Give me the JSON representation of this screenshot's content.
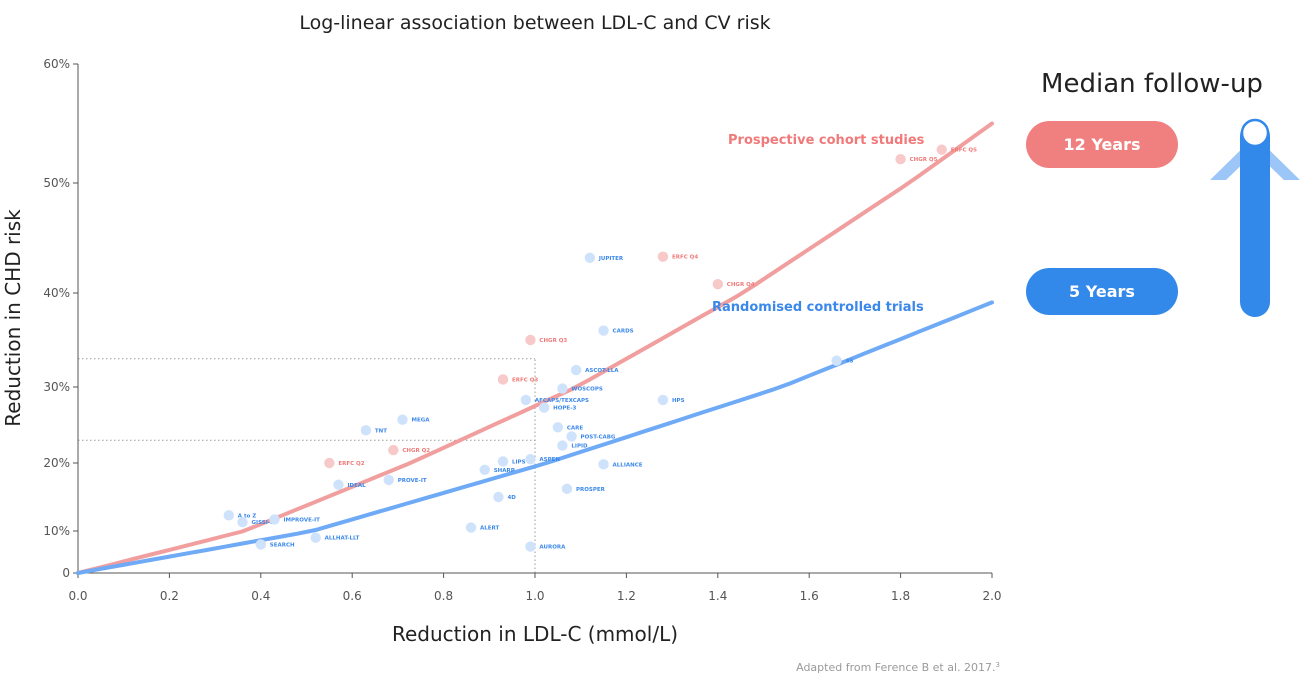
{
  "chart_data": {
    "type": "scatter",
    "title": "Log-linear association between LDL-C and CV risk",
    "xlabel": "Reduction in LDL-C (mmol/L)",
    "ylabel": "Reduction in CHD risk",
    "xlim": [
      0,
      2.0
    ],
    "x_ticks": [
      "0.0",
      "0.2",
      "0.4",
      "0.6",
      "0.8",
      "1.0",
      "1.2",
      "1.4",
      "1.6",
      "1.8",
      "2.0"
    ],
    "y_ticks": [
      {
        "value": 0,
        "label": "0"
      },
      {
        "value": 10,
        "label": "10%"
      },
      {
        "value": 20,
        "label": "20%"
      },
      {
        "value": 30,
        "label": "30%"
      },
      {
        "value": 40,
        "label": "40%"
      },
      {
        "value": 50,
        "label": "50%"
      },
      {
        "value": 60,
        "label": "60%"
      }
    ],
    "reference_lines": [
      {
        "axis": "x",
        "value": 1.0
      },
      {
        "axis": "y",
        "value": 33
      },
      {
        "axis": "y",
        "value": 23
      }
    ],
    "fit_lines": [
      {
        "name": "Prospective cohort studies",
        "color": "#f19e9e",
        "label_color": "#f07a7a",
        "points": [
          [
            0,
            0
          ],
          [
            2.0,
            55
          ]
        ]
      },
      {
        "name": "Randomised controlled trials",
        "color": "#6eaaf5",
        "label_color": "#3b88ea",
        "points": [
          [
            0,
            0
          ],
          [
            2.0,
            39
          ]
        ]
      }
    ],
    "series": [
      {
        "group": "cohort",
        "color": "#f7c9c9",
        "label_color": "#f07a7a",
        "points": [
          {
            "label": "ERFC Q5",
            "x": 1.89,
            "y": 52.8
          },
          {
            "label": "CHGR Q5",
            "x": 1.8,
            "y": 52.0
          },
          {
            "label": "ERFC Q4",
            "x": 1.28,
            "y": 43.3
          },
          {
            "label": "CHGR Q4",
            "x": 1.4,
            "y": 40.8
          },
          {
            "label": "CHGR Q3",
            "x": 0.99,
            "y": 35.0
          },
          {
            "label": "ERFC Q3",
            "x": 0.93,
            "y": 30.8
          },
          {
            "label": "CHGR Q2",
            "x": 0.69,
            "y": 21.7
          },
          {
            "label": "ERFC Q2",
            "x": 0.55,
            "y": 20.0
          }
        ]
      },
      {
        "group": "rct",
        "color": "#cfe2fb",
        "label_color": "#3b88ea",
        "points": [
          {
            "label": "JUPITER",
            "x": 1.12,
            "y": 43.2
          },
          {
            "label": "CARDS",
            "x": 1.15,
            "y": 36.0
          },
          {
            "label": "4S",
            "x": 1.66,
            "y": 32.8
          },
          {
            "label": "ASCOT-LLA",
            "x": 1.09,
            "y": 31.8
          },
          {
            "label": "WOSCOPS",
            "x": 1.06,
            "y": 29.8
          },
          {
            "label": "AFCAPS/TEXCAPS",
            "x": 0.98,
            "y": 28.3
          },
          {
            "label": "HPS",
            "x": 1.28,
            "y": 28.3
          },
          {
            "label": "HOPE-3",
            "x": 1.02,
            "y": 27.3
          },
          {
            "label": "MEGA",
            "x": 0.71,
            "y": 25.7
          },
          {
            "label": "TNT",
            "x": 0.63,
            "y": 24.3
          },
          {
            "label": "CARE",
            "x": 1.05,
            "y": 24.7
          },
          {
            "label": "POST-CABG",
            "x": 1.08,
            "y": 23.5
          },
          {
            "label": "LIPID",
            "x": 1.06,
            "y": 22.3
          },
          {
            "label": "ASPEN",
            "x": 0.99,
            "y": 20.5
          },
          {
            "label": "LIPS",
            "x": 0.93,
            "y": 20.2
          },
          {
            "label": "ALLIANCE",
            "x": 1.15,
            "y": 19.8
          },
          {
            "label": "SHARP",
            "x": 0.89,
            "y": 19.0
          },
          {
            "label": "PROVE-IT",
            "x": 0.68,
            "y": 17.5
          },
          {
            "label": "IDEAL",
            "x": 0.57,
            "y": 16.8
          },
          {
            "label": "PROSPER",
            "x": 1.07,
            "y": 16.2
          },
          {
            "label": "4D",
            "x": 0.92,
            "y": 15.0
          },
          {
            "label": "A to Z",
            "x": 0.33,
            "y": 12.3
          },
          {
            "label": "GISSI-P",
            "x": 0.36,
            "y": 11.3
          },
          {
            "label": "IMPROVE-IT",
            "x": 0.43,
            "y": 11.7
          },
          {
            "label": "ALERT",
            "x": 0.86,
            "y": 10.5
          },
          {
            "label": "ALLHAT-LLT",
            "x": 0.52,
            "y": 8.4
          },
          {
            "label": "SEARCH",
            "x": 0.4,
            "y": 6.8
          },
          {
            "label": "AURORA",
            "x": 0.99,
            "y": 6.3
          }
        ]
      }
    ]
  },
  "legend": {
    "title": "Median follow-up",
    "items": [
      {
        "label": "12 Years",
        "color": "#f08080"
      },
      {
        "label": "5 Years",
        "color": "#3389ea"
      }
    ],
    "arrow_color": "#3389ea",
    "arrow_light_color": "#9cc6f7"
  },
  "caption": "Adapted from Ference B et al. 2017.",
  "caption_sup": "3"
}
